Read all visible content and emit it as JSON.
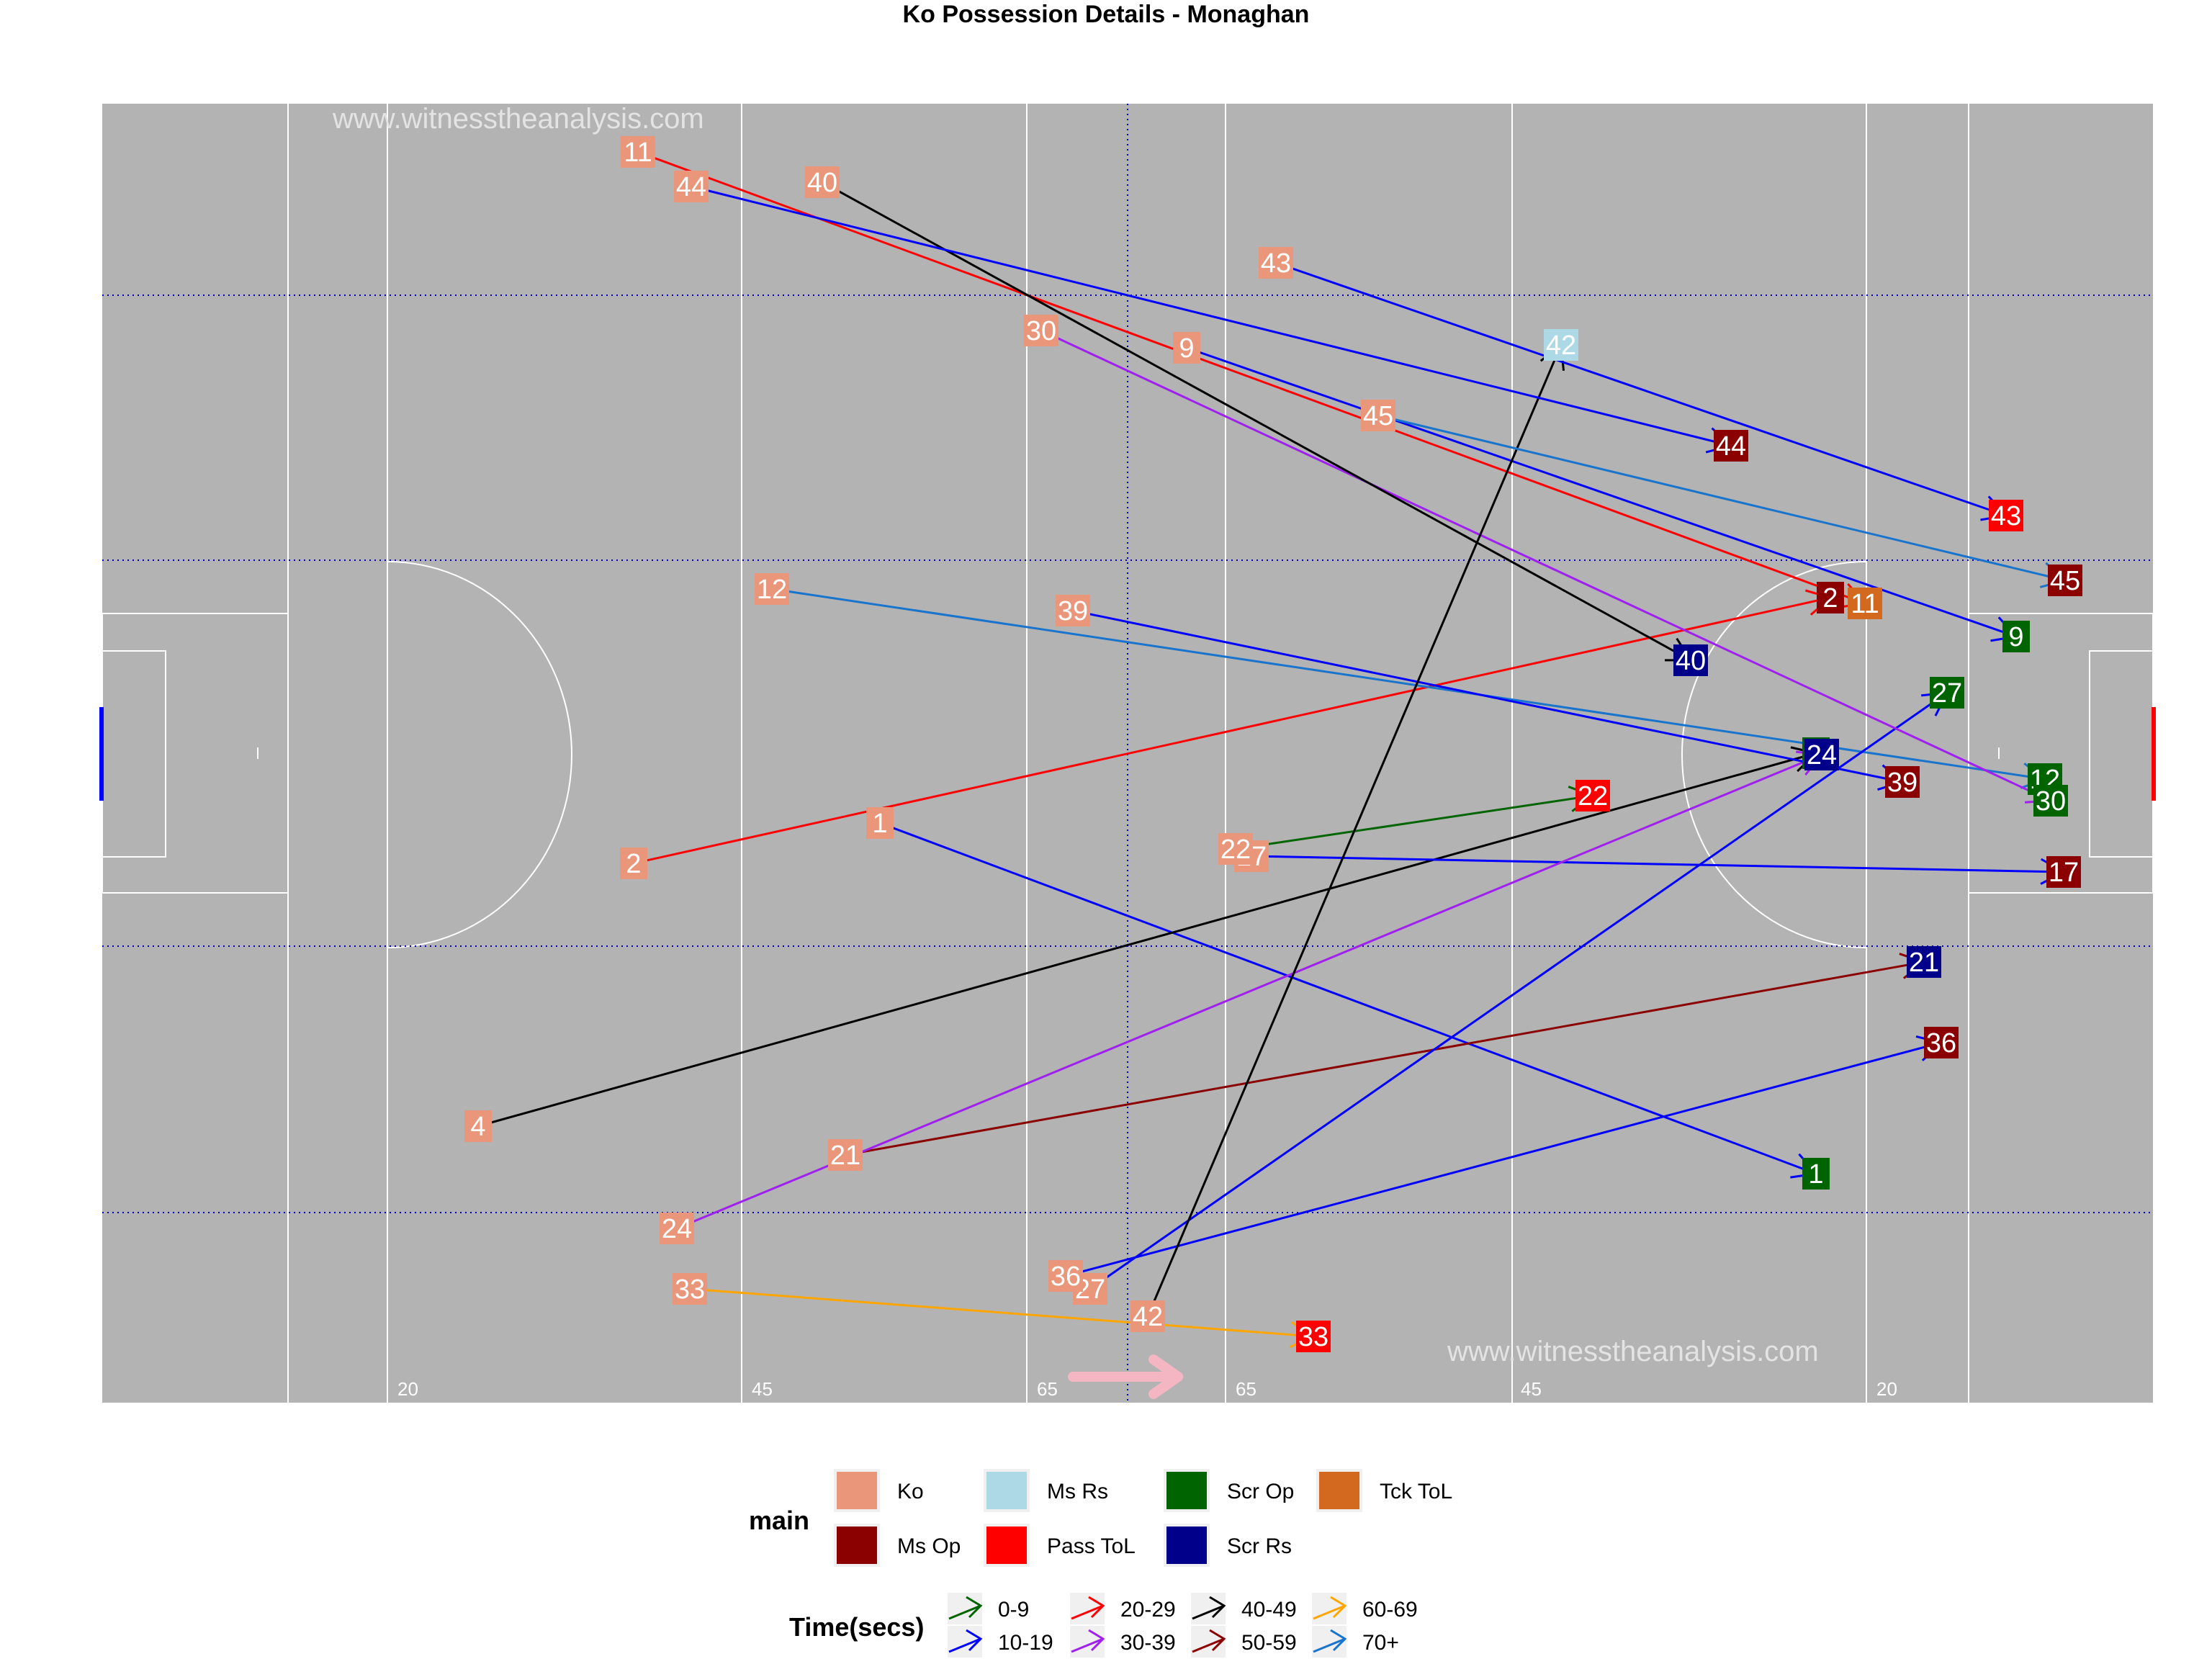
{
  "chart_data": {
    "type": "scatter",
    "title": "Ko Possession Details - Monaghan",
    "watermark": "www.witnesstheanalysis.com",
    "field_lines": [
      "20",
      "45",
      "65",
      "65",
      "45",
      "20"
    ],
    "legend_main": {
      "title": "main",
      "entries": [
        {
          "label": "Ko",
          "color": "#E9967A"
        },
        {
          "label": "Ms Op",
          "color": "#8B0000"
        },
        {
          "label": "Ms Rs",
          "color": "#ADD8E6"
        },
        {
          "label": "Pass ToL",
          "color": "#FF0000"
        },
        {
          "label": "Scr Op",
          "color": "#006400"
        },
        {
          "label": "Scr Rs",
          "color": "#00008B"
        },
        {
          "label": "Tck ToL",
          "color": "#D2691E"
        }
      ]
    },
    "legend_time": {
      "title": "Time(secs)",
      "entries": [
        {
          "label": "0-9",
          "color": "#006400"
        },
        {
          "label": "10-19",
          "color": "#0000FF"
        },
        {
          "label": "20-29",
          "color": "#FF0000"
        },
        {
          "label": "30-39",
          "color": "#A020F0"
        },
        {
          "label": "40-49",
          "color": "#000000"
        },
        {
          "label": "50-59",
          "color": "#8B0000"
        },
        {
          "label": "60-69",
          "color": "#FFA500"
        },
        {
          "label": "70+",
          "color": "#1874CD"
        }
      ]
    },
    "possessions": [
      {
        "label": "1",
        "start": [
          1222,
          1143
        ],
        "end": [
          2522,
          1630
        ],
        "outcome": "Scr Op",
        "time": "10-19"
      },
      {
        "label": "2",
        "start": [
          880,
          1199
        ],
        "end": [
          2542,
          830
        ],
        "outcome": "Ms Op",
        "time": "20-29"
      },
      {
        "label": "4",
        "start": [
          664,
          1564
        ],
        "end": [
          2522,
          1046
        ],
        "outcome": "Scr Op",
        "time": "40-49"
      },
      {
        "label": "9",
        "start": [
          1648,
          483
        ],
        "end": [
          2800,
          884
        ],
        "outcome": "Scr Op",
        "time": "10-19"
      },
      {
        "label": "11",
        "start": [
          886,
          211
        ],
        "end": [
          2590,
          838
        ],
        "outcome": "Tck ToL",
        "time": "20-29"
      },
      {
        "label": "12",
        "start": [
          1072,
          818
        ],
        "end": [
          2840,
          1082
        ],
        "outcome": "Scr Op",
        "time": "70+"
      },
      {
        "label": "17",
        "start": [
          1738,
          1189
        ],
        "end": [
          2866,
          1211
        ],
        "outcome": "Ms Op",
        "time": "10-19"
      },
      {
        "label": "21",
        "start": [
          1174,
          1604
        ],
        "end": [
          2672,
          1336
        ],
        "outcome": "Scr Rs",
        "time": "50-59"
      },
      {
        "label": "22",
        "start": [
          1716,
          1179
        ],
        "end": [
          2212,
          1105
        ],
        "outcome": "Pass ToL",
        "time": "0-9"
      },
      {
        "label": "24",
        "start": [
          940,
          1706
        ],
        "end": [
          2530,
          1048
        ],
        "outcome": "Scr Rs",
        "time": "30-39"
      },
      {
        "label": "27",
        "start": [
          1514,
          1790
        ],
        "end": [
          2704,
          962
        ],
        "outcome": "Scr Op",
        "time": "10-19"
      },
      {
        "label": "30",
        "start": [
          1446,
          459
        ],
        "end": [
          2848,
          1112
        ],
        "outcome": "Scr Op",
        "time": "30-39"
      },
      {
        "label": "33",
        "start": [
          958,
          1790
        ],
        "end": [
          1824,
          1856
        ],
        "outcome": "Pass ToL",
        "time": "60-69"
      },
      {
        "label": "36",
        "start": [
          1480,
          1772
        ],
        "end": [
          2696,
          1448
        ],
        "outcome": "Ms Op",
        "time": "10-19"
      },
      {
        "label": "39",
        "start": [
          1490,
          848
        ],
        "end": [
          2642,
          1086
        ],
        "outcome": "Ms Op",
        "time": "10-19"
      },
      {
        "label": "40",
        "start": [
          1142,
          253
        ],
        "end": [
          2348,
          917
        ],
        "outcome": "Scr Rs",
        "time": "40-49"
      },
      {
        "label": "42",
        "start": [
          1594,
          1828
        ],
        "end": [
          2168,
          479
        ],
        "outcome": "Ms Rs",
        "time": "40-49"
      },
      {
        "label": "43",
        "start": [
          1772,
          365
        ],
        "end": [
          2786,
          716
        ],
        "outcome": "Pass ToL",
        "time": "10-19"
      },
      {
        "label": "44",
        "start": [
          960,
          259
        ],
        "end": [
          2404,
          619
        ],
        "outcome": "Ms Op",
        "time": "10-19"
      },
      {
        "label": "45",
        "start": [
          1914,
          577
        ],
        "end": [
          2868,
          806
        ],
        "outcome": "Ms Op",
        "time": "70+"
      }
    ]
  }
}
